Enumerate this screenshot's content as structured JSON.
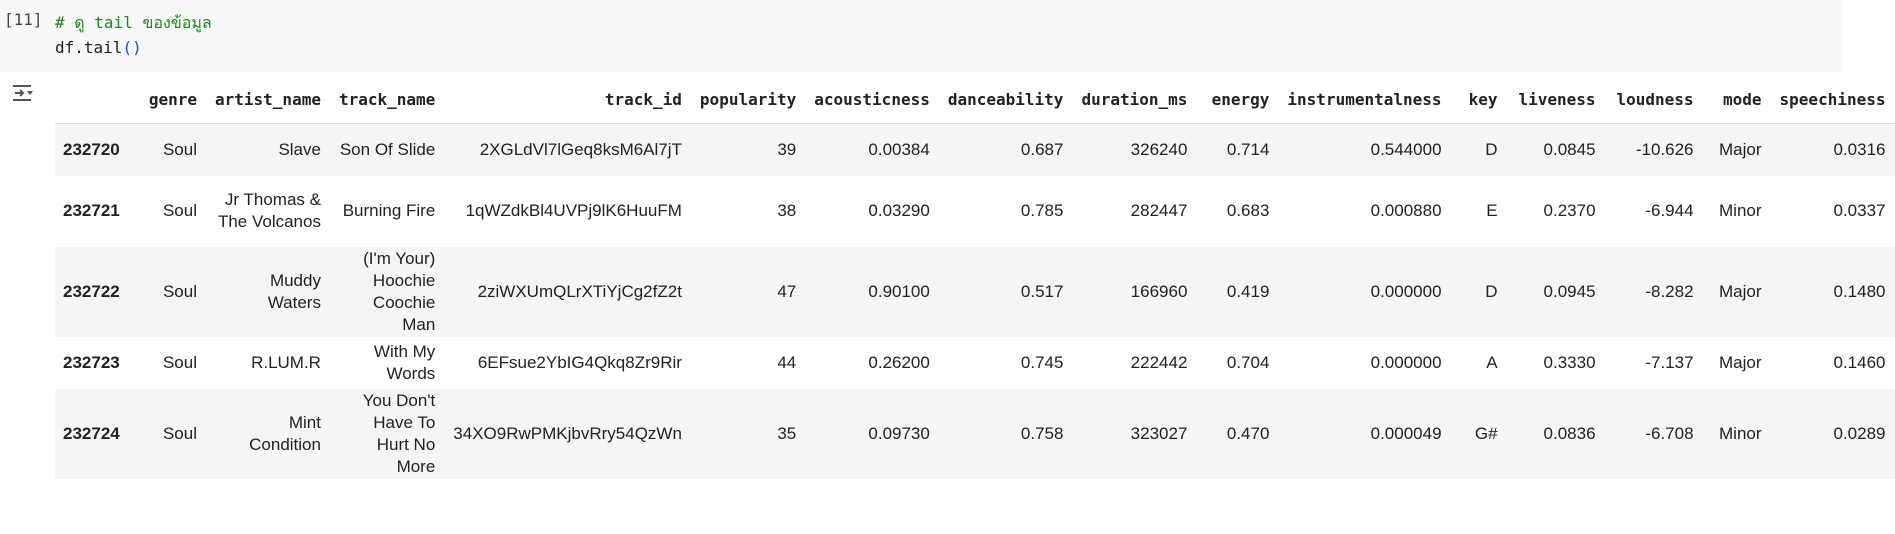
{
  "cell": {
    "execution_count": "[11]",
    "code_comment": "# ดู tail ของข้อมูล",
    "code_obj": "df.tail",
    "code_paren": "()"
  },
  "output_toggle_icon": "output-collapse-icon",
  "table": {
    "columns": [
      "",
      "genre",
      "artist_name",
      "track_name",
      "track_id",
      "popularity",
      "acousticness",
      "danceability",
      "duration_ms",
      "energy",
      "instrumentalness",
      "key",
      "liveness",
      "loudness",
      "mode",
      "speechiness"
    ],
    "rows": [
      [
        "232720",
        "Soul",
        "Slave",
        "Son Of Slide",
        "2XGLdVl7lGeq8ksM6Al7jT",
        "39",
        "0.00384",
        "0.687",
        "326240",
        "0.714",
        "0.544000",
        "D",
        "0.0845",
        "-10.626",
        "Major",
        "0.0316"
      ],
      [
        "232721",
        "Soul",
        "Jr Thomas & The Volcanos",
        "Burning Fire",
        "1qWZdkBl4UVPj9lK6HuuFM",
        "38",
        "0.03290",
        "0.785",
        "282447",
        "0.683",
        "0.000880",
        "E",
        "0.2370",
        "-6.944",
        "Minor",
        "0.0337"
      ],
      [
        "232722",
        "Soul",
        "Muddy Waters",
        "(I'm Your) Hoochie Coochie Man",
        "2ziWXUmQLrXTiYjCg2fZ2t",
        "47",
        "0.90100",
        "0.517",
        "166960",
        "0.419",
        "0.000000",
        "D",
        "0.0945",
        "-8.282",
        "Major",
        "0.1480"
      ],
      [
        "232723",
        "Soul",
        "R.LUM.R",
        "With My Words",
        "6EFsue2YbIG4Qkq8Zr9Rir",
        "44",
        "0.26200",
        "0.745",
        "222442",
        "0.704",
        "0.000000",
        "A",
        "0.3330",
        "-7.137",
        "Major",
        "0.1460"
      ],
      [
        "232724",
        "Soul",
        "Mint Condition",
        "You Don't Have To Hurt No More",
        "34XO9RwPMKjbvRry54QzWn",
        "35",
        "0.09730",
        "0.758",
        "323027",
        "0.470",
        "0.000049",
        "G#",
        "0.0836",
        "-6.708",
        "Minor",
        "0.0289"
      ]
    ]
  }
}
